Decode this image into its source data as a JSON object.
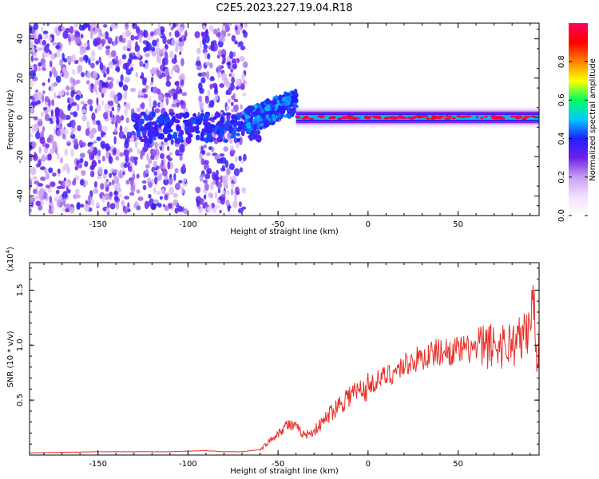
{
  "title": "C2E5.2023.227.19.04.R18",
  "chart_data": [
    {
      "type": "heatmap",
      "xlabel": "Height of straight line (km)",
      "ylabel": "Frequency (Hz)",
      "xlim": [
        -188,
        95
      ],
      "ylim": [
        -50,
        48
      ],
      "xticks": [
        -150,
        -100,
        -50,
        0,
        50
      ],
      "yticks": [
        -40,
        -20,
        0,
        20,
        40
      ],
      "colorbar": {
        "label": "Normalized spectral amplitude",
        "range": [
          0.0,
          1.0
        ],
        "ticks": [
          0.0,
          0.2,
          0.4,
          0.6,
          0.8
        ],
        "tick_labels": [
          "0.0",
          "0.2",
          "0.4",
          "0.6",
          "0.8"
        ],
        "colormap": [
          "#ffffff",
          "#f0e0ff",
          "#c8a0f0",
          "#7020e8",
          "#2020ff",
          "#00c8ff",
          "#00ff60",
          "#ffff00",
          "#ff8000",
          "#ff0000",
          "#ff0060"
        ]
      },
      "features": [
        {
          "x_range": [
            -188,
            -68
          ],
          "description_values": {
            "amplitude": 0.1,
            "freq_spread": [
              -48,
              48
            ]
          }
        },
        {
          "x_range": [
            -68,
            -40
          ],
          "center_freq": [
            -2,
            8
          ],
          "amplitude": 0.35
        },
        {
          "x_range": [
            -40,
            95
          ],
          "center_freq": 0,
          "amplitude": 0.9
        }
      ]
    },
    {
      "type": "line",
      "xlabel": "Height of straight line (km)",
      "ylabel": "SNR (10 * v/v)",
      "multiplier_label": "(x10",
      "multiplier_exp": "4",
      "multiplier_close": ")",
      "xlim": [
        -188,
        95
      ],
      "ylim": [
        0,
        1.75
      ],
      "xticks": [
        -150,
        -100,
        -50,
        0,
        50
      ],
      "yticks": [
        0.5,
        1.0,
        1.5
      ],
      "ytick_labels": [
        "0.5",
        "1.0",
        "1.5"
      ],
      "series": [
        {
          "color": "#e8302a",
          "x": [
            -188,
            -150,
            -110,
            -90,
            -80,
            -70,
            -60,
            -55,
            -50,
            -45,
            -40,
            -35,
            -30,
            -25,
            -20,
            -15,
            -10,
            -5,
            0,
            5,
            10,
            15,
            20,
            25,
            30,
            35,
            40,
            50,
            60,
            70,
            75,
            80,
            85,
            88,
            90,
            92,
            94
          ],
          "y": [
            0.02,
            0.03,
            0.03,
            0.04,
            0.03,
            0.03,
            0.05,
            0.12,
            0.2,
            0.28,
            0.25,
            0.18,
            0.22,
            0.3,
            0.4,
            0.48,
            0.55,
            0.58,
            0.62,
            0.68,
            0.72,
            0.76,
            0.82,
            0.86,
            0.88,
            0.92,
            0.94,
            0.95,
            0.97,
            1.0,
            1.0,
            1.02,
            1.05,
            1.1,
            1.2,
            1.4,
            0.9
          ]
        }
      ]
    }
  ]
}
